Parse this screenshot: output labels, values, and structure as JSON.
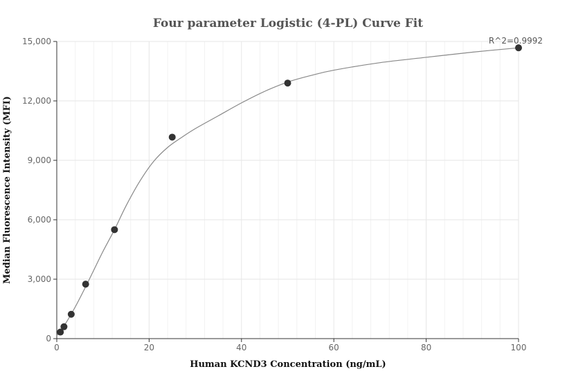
{
  "chart_data": {
    "type": "scatter",
    "title": "Four parameter Logistic (4-PL) Curve Fit",
    "xlabel": "Human KCND3 Concentration (ng/mL)",
    "ylabel": "Median Fluorescence Intensity (MFI)",
    "xlim": [
      0,
      100
    ],
    "ylim": [
      0,
      15000
    ],
    "x_ticks": [
      0,
      20,
      40,
      60,
      80,
      100
    ],
    "x_tick_labels": [
      "0",
      "20",
      "40",
      "60",
      "80",
      "100"
    ],
    "y_ticks": [
      0,
      3000,
      6000,
      9000,
      12000,
      15000
    ],
    "y_tick_labels": [
      "0",
      "3,000",
      "6,000",
      "9,000",
      "12,000",
      "15,000"
    ],
    "grid": true,
    "annotation": "R^2=0.9992",
    "points": [
      {
        "x": 0.78,
        "y": 330
      },
      {
        "x": 1.56,
        "y": 600
      },
      {
        "x": 3.13,
        "y": 1230
      },
      {
        "x": 6.25,
        "y": 2750
      },
      {
        "x": 12.5,
        "y": 5500
      },
      {
        "x": 25,
        "y": 10170
      },
      {
        "x": 50,
        "y": 12900
      },
      {
        "x": 100,
        "y": 14680
      }
    ],
    "fit_curve": {
      "x": [
        0,
        2,
        4,
        6,
        8,
        10,
        12.5,
        15,
        18,
        21,
        24,
        27,
        30,
        35,
        40,
        45,
        50,
        55,
        60,
        70,
        80,
        90,
        100
      ],
      "y": [
        150,
        800,
        1600,
        2500,
        3450,
        4400,
        5500,
        6700,
        7950,
        8950,
        9650,
        10150,
        10600,
        11250,
        11900,
        12480,
        12950,
        13280,
        13550,
        13930,
        14200,
        14460,
        14680
      ]
    },
    "colors": {
      "points": "#333333",
      "curve": "#888888",
      "title": "#555555"
    }
  }
}
